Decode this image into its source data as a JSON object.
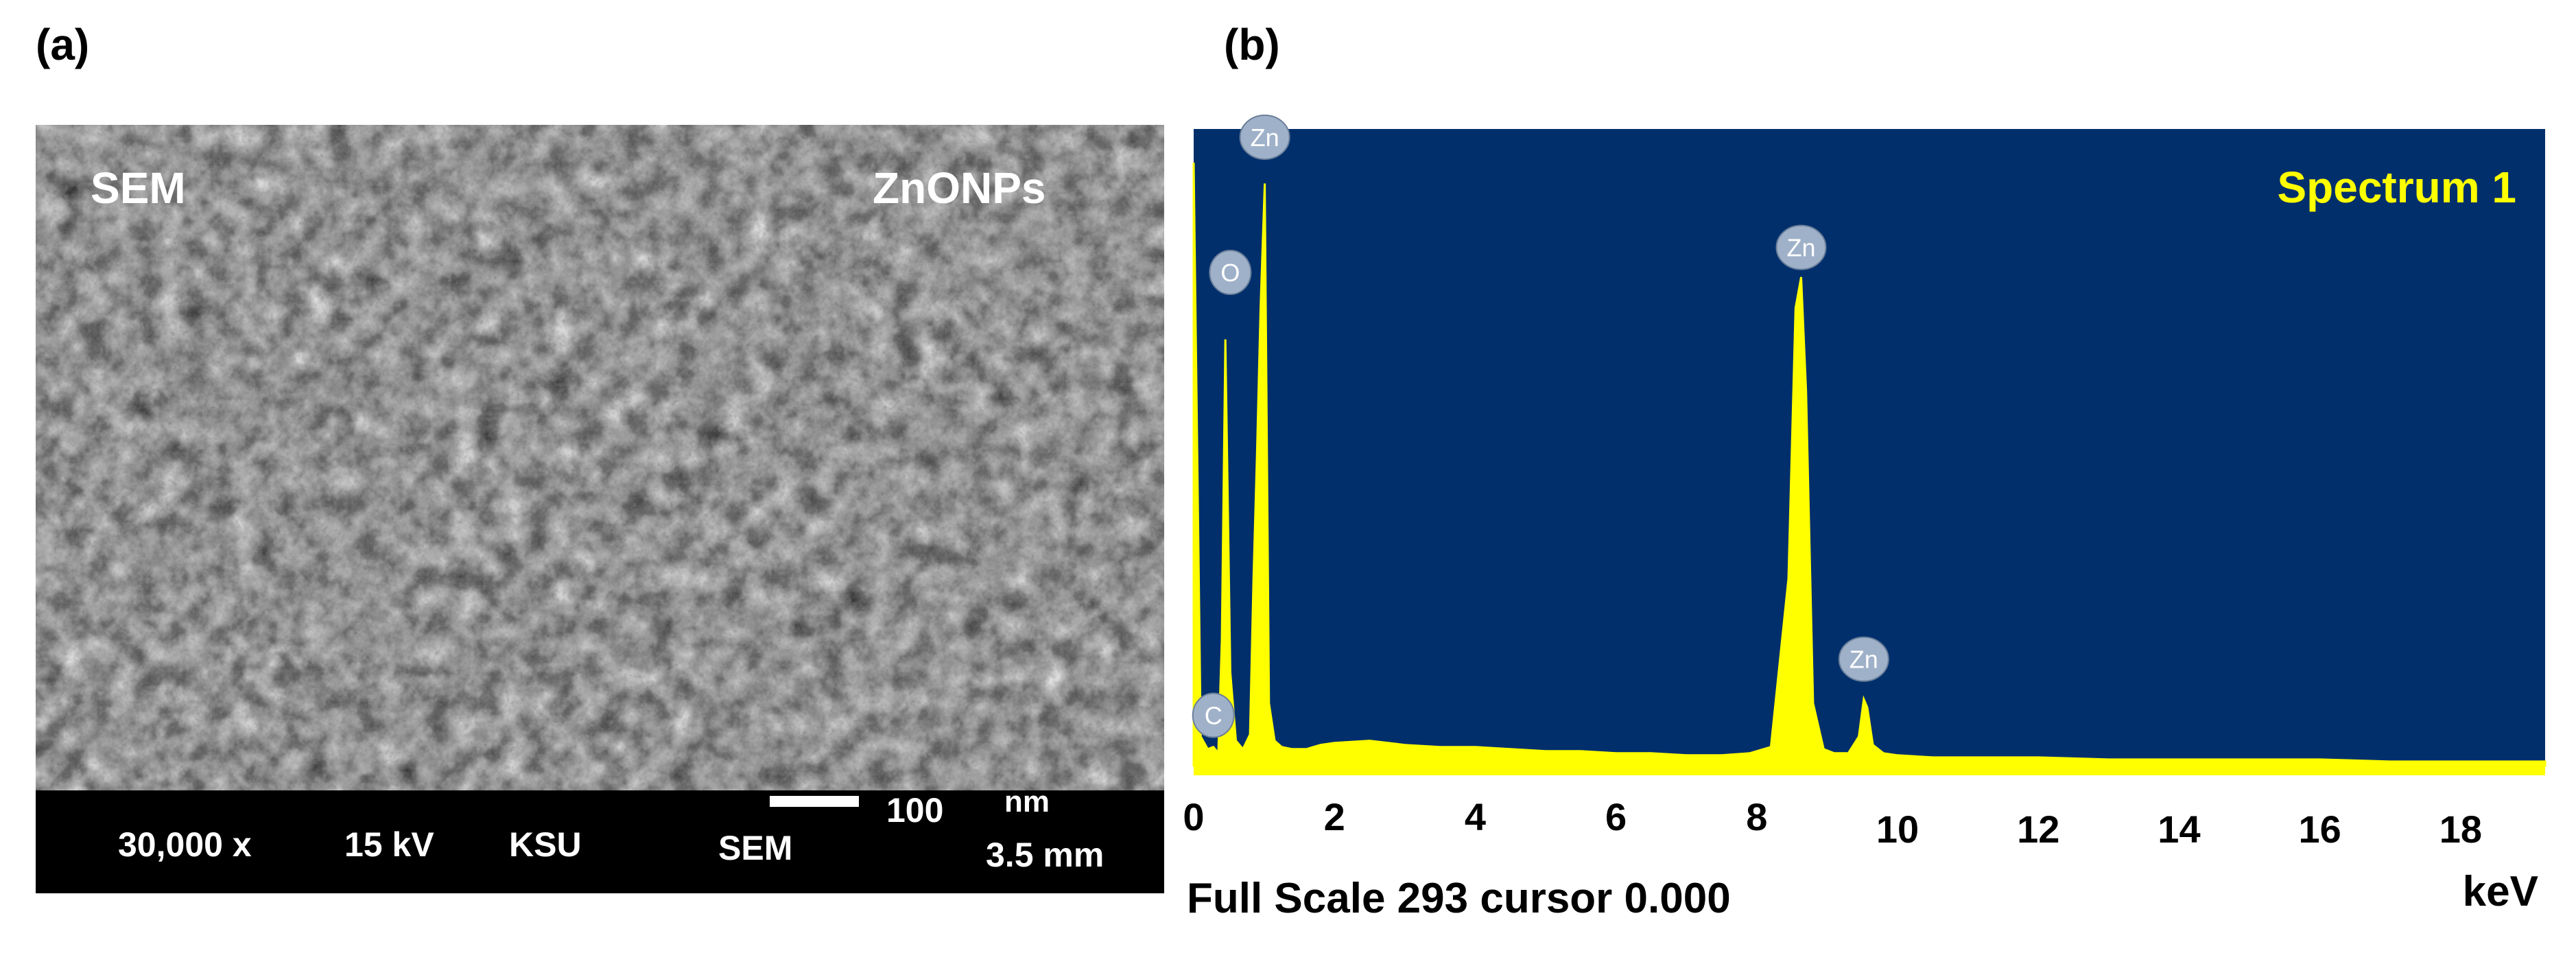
{
  "panel_labels": {
    "a": "(a)",
    "b": "(b)"
  },
  "sem": {
    "mode_label": "SEM",
    "sample_label": "ZnONPs",
    "info_bar": {
      "magnification": "30,000 x",
      "voltage": "15 kV",
      "institution": "KSU",
      "detector": "SEM",
      "scale_value": "100",
      "scale_unit": "nm",
      "working_distance": "3.5 mm"
    }
  },
  "chart_data": {
    "type": "line",
    "title": "Spectrum 1",
    "xlabel": "keV",
    "xlim": [
      0,
      19.2
    ],
    "xticks": [
      "0",
      "2",
      "4",
      "6",
      "8",
      "10",
      "12",
      "14",
      "16",
      "18"
    ],
    "ylim": [
      0,
      293
    ],
    "footer": "Full Scale 293 cursor 0.000",
    "colors": {
      "background": "#002f6c",
      "trace": "#ffff00",
      "bubble": "#9fb1c9"
    },
    "series": [
      {
        "x": [
          0.0,
          0.1,
          0.2,
          0.28,
          0.35,
          0.4,
          0.45,
          0.52,
          0.6,
          0.7,
          0.8,
          0.85,
          0.9,
          0.95,
          1.01,
          1.07,
          1.15,
          1.25,
          1.4,
          1.6,
          1.8,
          2.0,
          2.5,
          3.0,
          3.5,
          4.0,
          4.5,
          5.0,
          5.5,
          6.0,
          6.5,
          7.0,
          7.5,
          7.9,
          8.2,
          8.45,
          8.55,
          8.63,
          8.7,
          8.8,
          8.95,
          9.1,
          9.3,
          9.45,
          9.52,
          9.57,
          9.65,
          9.8,
          10.0,
          10.5,
          11.0,
          12.0,
          13.0,
          14.0,
          15.0,
          16.0,
          17.0,
          18.0,
          19.2
        ],
        "y": [
          290,
          14,
          8,
          9,
          6,
          60,
          205,
          45,
          12,
          8,
          15,
          90,
          150,
          220,
          280,
          30,
          12,
          9,
          8,
          8,
          10,
          11,
          12,
          10,
          9,
          9,
          8,
          7,
          7,
          6,
          6,
          5,
          5,
          6,
          9,
          90,
          220,
          235,
          180,
          30,
          8,
          6,
          6,
          14,
          32,
          28,
          10,
          6,
          5,
          4,
          4,
          4,
          3,
          3,
          3,
          3,
          2,
          2,
          2
        ]
      }
    ],
    "peak_labels": [
      {
        "element": "C",
        "x": 0.28,
        "y": 15
      },
      {
        "element": "O",
        "x": 0.52,
        "y": 228
      },
      {
        "element": "Zn",
        "x": 1.01,
        "y": 293
      },
      {
        "element": "Zn",
        "x": 8.63,
        "y": 240
      },
      {
        "element": "Zn",
        "x": 9.52,
        "y": 42
      }
    ]
  }
}
